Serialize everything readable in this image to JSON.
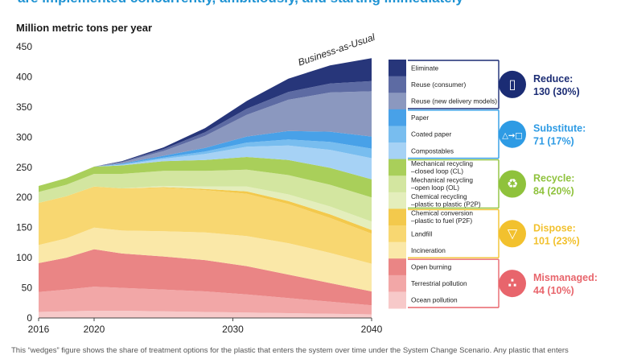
{
  "headline": "are implemented concurrently, ambitiously, and starting immediately",
  "footnote": "This “wedges” figure shows the share of treatment options for the plastic that enters the system over time under the System Change Scenario. Any plastic that enters",
  "chart_data": {
    "type": "area",
    "stacked": true,
    "ylabel": "Million metric tons per year",
    "ylim": [
      0,
      450
    ],
    "yticks": [
      0,
      50,
      100,
      150,
      200,
      250,
      300,
      350,
      400,
      450
    ],
    "xlim": [
      2016,
      2040
    ],
    "xticks": [
      2016,
      2020,
      2030,
      2040
    ],
    "x": [
      2016,
      2018,
      2020,
      2022,
      2025,
      2028,
      2031,
      2034,
      2037,
      2040
    ],
    "annotation": "Business-as-Usual",
    "series": [
      {
        "name": "Ocean pollution",
        "color": "#f7c9c9",
        "values": [
          10,
          11,
          12,
          12,
          11,
          10,
          9,
          8,
          7,
          6
        ]
      },
      {
        "name": "Terrestrial pollution",
        "color": "#f2a7a7",
        "values": [
          33,
          36,
          40,
          38,
          36,
          34,
          30,
          25,
          20,
          15
        ]
      },
      {
        "name": "Open burning",
        "color": "#ea8585",
        "values": [
          48,
          53,
          62,
          57,
          55,
          52,
          47,
          39,
          31,
          23
        ]
      },
      {
        "name": "Incineration",
        "color": "#fae8a8",
        "values": [
          30,
          32,
          36,
          38,
          42,
          46,
          50,
          52,
          50,
          46
        ]
      },
      {
        "name": "Landfill",
        "color": "#f8d771",
        "values": [
          70,
          70,
          68,
          70,
          72,
          70,
          70,
          65,
          58,
          50
        ]
      },
      {
        "name": "Chemical conversion –plastic to fuel (P2F)",
        "color": "#f3c94c",
        "values": [
          0,
          0,
          0,
          0,
          1,
          2,
          4,
          5,
          6,
          6
        ]
      },
      {
        "name": "Chemical recycling –plastic to plastic (P2P)",
        "color": "#e4eebc",
        "values": [
          0,
          0,
          0,
          0,
          2,
          4,
          8,
          11,
          13,
          14
        ]
      },
      {
        "name": "Mechanical recycling –open loop (OL)",
        "color": "#d3e6a0",
        "values": [
          18,
          19,
          21,
          24,
          25,
          26,
          28,
          32,
          36,
          40
        ]
      },
      {
        "name": "Mechanical recycling –closed loop (CL)",
        "color": "#a9cf5a",
        "values": [
          10,
          11,
          12,
          14,
          16,
          18,
          21,
          25,
          28,
          30
        ]
      },
      {
        "name": "Compostables",
        "color": "#a6d2f5",
        "values": [
          0,
          0,
          0,
          1,
          4,
          10,
          17,
          24,
          30,
          35
        ]
      },
      {
        "name": "Coated paper",
        "color": "#78bdef",
        "values": [
          0,
          0,
          0,
          1,
          2,
          4,
          7,
          10,
          13,
          16
        ]
      },
      {
        "name": "Paper",
        "color": "#48a1e8",
        "values": [
          0,
          0,
          0,
          1,
          3,
          6,
          10,
          14,
          17,
          20
        ]
      },
      {
        "name": "Reuse (new delivery models)",
        "color": "#8b98bf",
        "values": [
          0,
          0,
          0,
          2,
          8,
          20,
          36,
          52,
          65,
          75
        ]
      },
      {
        "name": "Reuse (consumer)",
        "color": "#5d6ba3",
        "values": [
          0,
          0,
          0,
          1,
          3,
          6,
          10,
          13,
          15,
          17
        ]
      },
      {
        "name": "Eliminate",
        "color": "#27367a",
        "values": [
          0,
          0,
          0,
          1,
          3,
          7,
          13,
          22,
          30,
          38
        ]
      }
    ],
    "groups": [
      {
        "name": "Reduce:",
        "value": "130 (30%)",
        "color": "#1b2c74",
        "icon": "box-reduce-icon",
        "glyph": "▯",
        "span": [
          "Eliminate",
          "Reuse (new delivery models)"
        ]
      },
      {
        "name": "Substitute:",
        "value": "71 (17%)",
        "color": "#2e9be4",
        "icon": "substitute-shapes-icon",
        "glyph": "△→□",
        "span": [
          "Paper",
          "Compostables"
        ]
      },
      {
        "name": "Recycle:",
        "value": "84 (20%)",
        "color": "#8fc23c",
        "icon": "recycle-icon",
        "glyph": "♻",
        "span": [
          "Mechanical recycling –closed loop (CL)",
          "Chemical recycling –plastic to plastic (P2P)"
        ]
      },
      {
        "name": "Dispose:",
        "value": "101 (23%)",
        "color": "#f2c12e",
        "icon": "bin-dispose-icon",
        "glyph": "▽",
        "span": [
          "Chemical conversion –plastic to fuel (P2F)",
          "Incineration"
        ]
      },
      {
        "name": "Mismanaged:",
        "value": "44 (10%)",
        "color": "#e8656c",
        "icon": "mismanaged-pile-icon",
        "glyph": "∴",
        "span": [
          "Open burning",
          "Ocean pollution"
        ]
      }
    ],
    "legend_labels": {
      "Eliminate": [
        "Eliminate"
      ],
      "Reuse (consumer)": [
        "Reuse (consumer)"
      ],
      "Reuse (new delivery models)": [
        "Reuse (new delivery models)"
      ],
      "Paper": [
        "Paper"
      ],
      "Coated paper": [
        "Coated paper"
      ],
      "Compostables": [
        "Compostables"
      ],
      "Mechanical recycling –closed loop (CL)": [
        "Mechanical recycling",
        "–closed loop (CL)"
      ],
      "Mechanical recycling –open loop (OL)": [
        "Mechanical recycling",
        "–open loop (OL)"
      ],
      "Chemical recycling –plastic to plastic (P2P)": [
        "Chemical recycling",
        "–plastic to plastic (P2P)"
      ],
      "Chemical conversion –plastic to fuel (P2F)": [
        "Chemical conversion",
        "–plastic to fuel (P2F)"
      ],
      "Landfill": [
        "Landfill"
      ],
      "Incineration": [
        "Incineration"
      ],
      "Open burning": [
        "Open burning"
      ],
      "Terrestrial pollution": [
        "Terrestrial pollution"
      ],
      "Ocean pollution": [
        "Ocean pollution"
      ]
    }
  }
}
